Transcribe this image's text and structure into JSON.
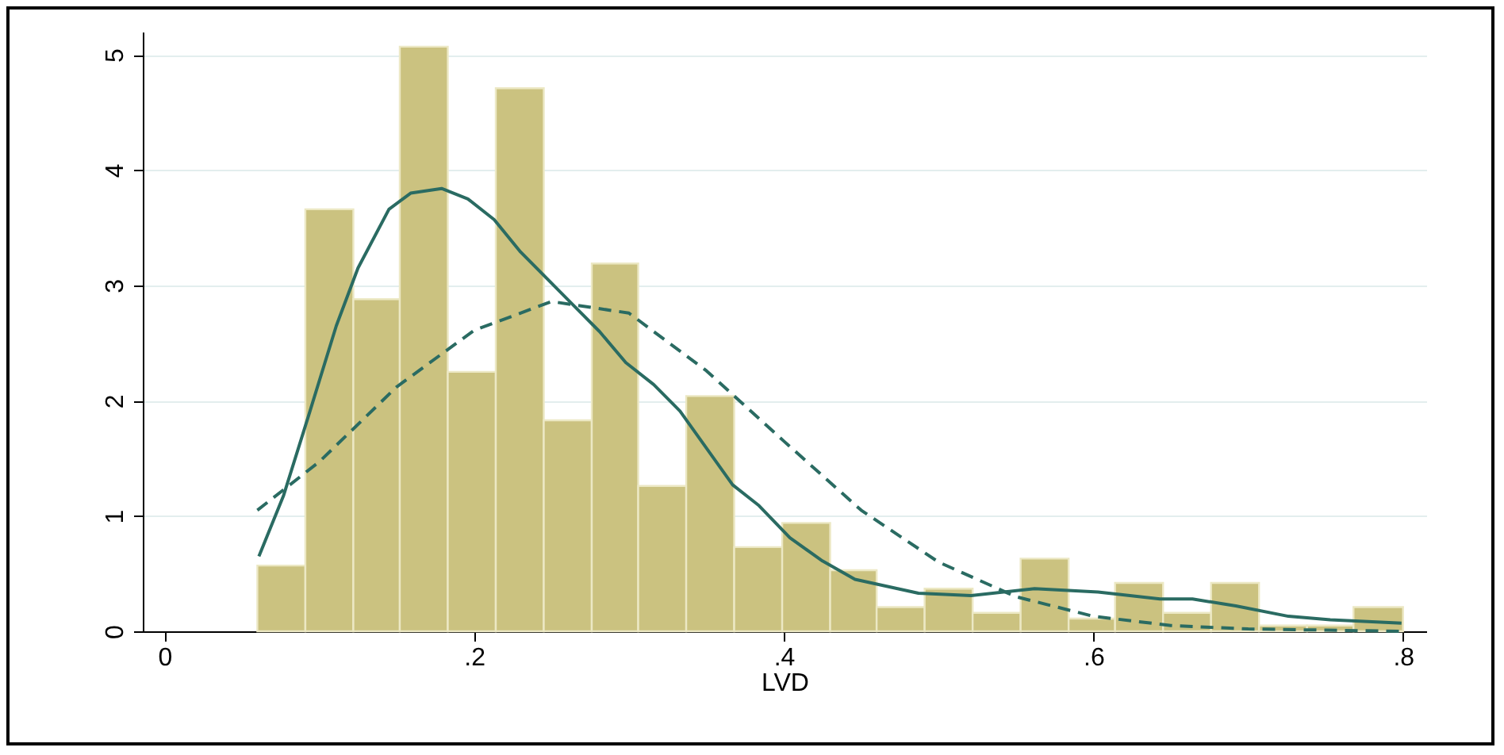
{
  "chart_data": {
    "type": "histogram",
    "xlabel": "LVD",
    "xlim": [
      -0.014,
      0.815
    ],
    "ylim": [
      0,
      5.2
    ],
    "xticks": [
      {
        "value": 0,
        "label": "0"
      },
      {
        "value": 0.2,
        "label": ".2"
      },
      {
        "value": 0.4,
        "label": ".4"
      },
      {
        "value": 0.6,
        "label": ".6"
      },
      {
        "value": 0.8,
        "label": ".8"
      }
    ],
    "yticks": [
      0,
      1,
      2,
      3,
      4,
      5
    ],
    "grid": "y",
    "series": [
      {
        "color": "#cbc280",
        "bins": [
          0.06,
          0.091,
          0.122,
          0.152,
          0.183,
          0.214,
          0.245,
          0.276,
          0.306,
          0.337,
          0.368,
          0.399,
          0.43,
          0.46,
          0.491,
          0.522,
          0.553,
          0.584,
          0.614,
          0.645,
          0.676,
          0.707,
          0.738,
          0.768,
          0.8
        ],
        "values": [
          0.57,
          3.66,
          2.88,
          5.07,
          2.25,
          4.71,
          1.83,
          3.19,
          1.26,
          2.04,
          0.73,
          0.94,
          0.53,
          0.21,
          0.37,
          0.16,
          0.63,
          0.11,
          0.42,
          0.16,
          0.42,
          0.05,
          0.05,
          0.21
        ]
      },
      {
        "type": "line",
        "color": "#2a6b62",
        "line_style": "solid",
        "x": [
          0.061,
          0.077,
          0.094,
          0.111,
          0.125,
          0.145,
          0.159,
          0.179,
          0.196,
          0.213,
          0.23,
          0.247,
          0.264,
          0.281,
          0.298,
          0.316,
          0.333,
          0.35,
          0.367,
          0.384,
          0.404,
          0.425,
          0.446,
          0.487,
          0.521,
          0.562,
          0.603,
          0.643,
          0.664,
          0.692,
          0.726,
          0.753,
          0.799
        ],
        "values": [
          0.65,
          1.18,
          1.91,
          2.65,
          3.15,
          3.66,
          3.8,
          3.84,
          3.75,
          3.57,
          3.29,
          3.06,
          2.83,
          2.6,
          2.33,
          2.14,
          1.91,
          1.59,
          1.27,
          1.09,
          0.81,
          0.61,
          0.45,
          0.33,
          0.31,
          0.37,
          0.34,
          0.28,
          0.28,
          0.22,
          0.13,
          0.1,
          0.07
        ]
      },
      {
        "type": "line",
        "color": "#2a6b62",
        "line_style": "dashed",
        "x": [
          0.06,
          0.1,
          0.15,
          0.2,
          0.25,
          0.3,
          0.35,
          0.4,
          0.45,
          0.5,
          0.55,
          0.6,
          0.65,
          0.7,
          0.75,
          0.8
        ],
        "values": [
          1.05,
          1.47,
          2.12,
          2.61,
          2.86,
          2.76,
          2.26,
          1.65,
          1.05,
          0.6,
          0.3,
          0.13,
          0.05,
          0.02,
          0.01,
          0.0
        ]
      }
    ]
  }
}
